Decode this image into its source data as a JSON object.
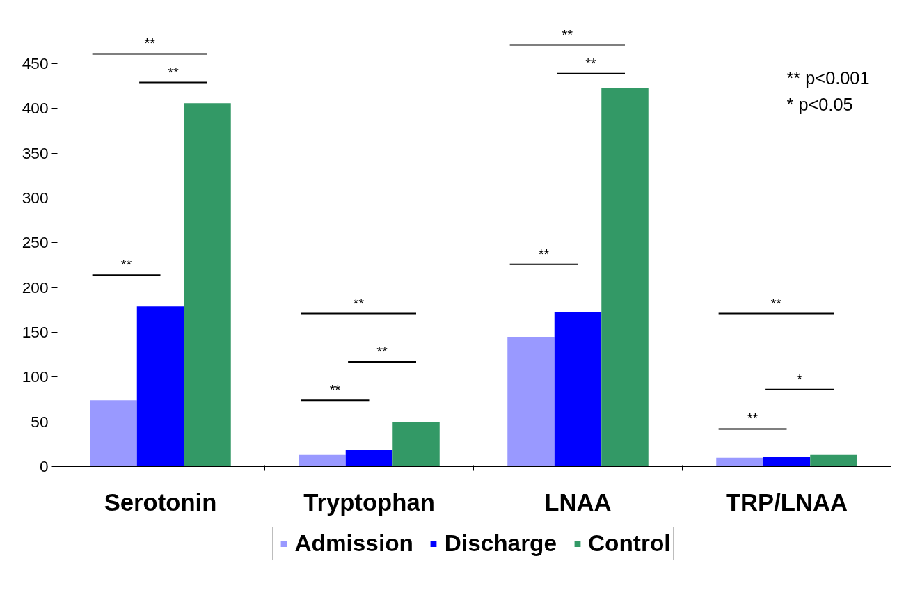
{
  "chart_data": {
    "type": "bar",
    "categories": [
      "Serotonin",
      "Tryptophan",
      "LNAA",
      "TRP/LNAA"
    ],
    "series": [
      {
        "name": "Admission",
        "color": "#9999ff",
        "values": [
          74,
          13,
          145,
          10
        ]
      },
      {
        "name": "Discharge",
        "color": "#0000ff",
        "values": [
          179,
          19,
          173,
          11
        ]
      },
      {
        "name": "Control",
        "color": "#339966",
        "values": [
          406,
          50,
          423,
          13
        ]
      }
    ],
    "ylim": [
      0,
      450
    ],
    "yticks": [
      0,
      50,
      100,
      150,
      200,
      250,
      300,
      350,
      400,
      450
    ],
    "grid": false,
    "legend": "bottom",
    "annotations": [
      "**",
      "**",
      "**",
      "**",
      "**",
      "**",
      "**",
      "**",
      "**",
      "**",
      "*",
      "**",
      "** p<0.001",
      "*  p<0.05"
    ]
  }
}
